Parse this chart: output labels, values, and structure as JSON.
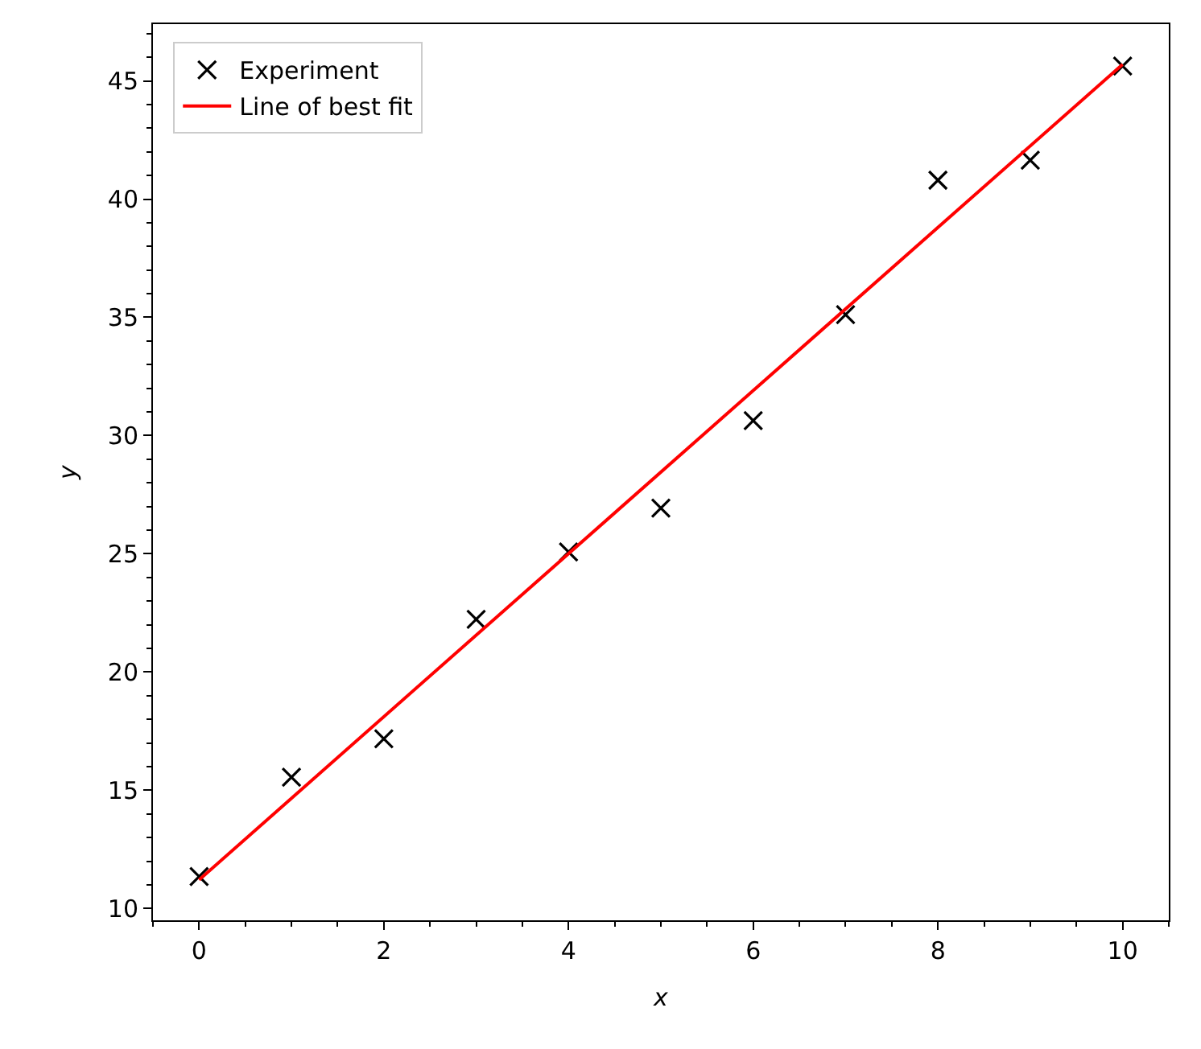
{
  "chart_data": {
    "type": "scatter",
    "xlabel": "x",
    "ylabel": "y",
    "x": [
      0,
      1,
      2,
      3,
      4,
      5,
      6,
      7,
      8,
      9,
      10
    ],
    "series": [
      {
        "name": "Experiment",
        "color": "#000000",
        "marker": "cross",
        "values": [
          11.35,
          15.55,
          17.18,
          22.23,
          25.08,
          26.93,
          30.63,
          35.11,
          40.8,
          41.65,
          45.63
        ]
      },
      {
        "name": "Line of best fit",
        "type": "line",
        "color": "#ff0000",
        "line_style": "solid",
        "x": [
          0,
          10
        ],
        "values": [
          11.21,
          45.7
        ]
      }
    ],
    "xlim": [
      -0.5,
      10.5
    ],
    "xticks": [
      0,
      2,
      4,
      6,
      8,
      10
    ],
    "ylim": [
      9.5,
      47.4
    ],
    "yticks": [
      10,
      15,
      20,
      25,
      30,
      35,
      40,
      45
    ],
    "legend": "top left"
  }
}
